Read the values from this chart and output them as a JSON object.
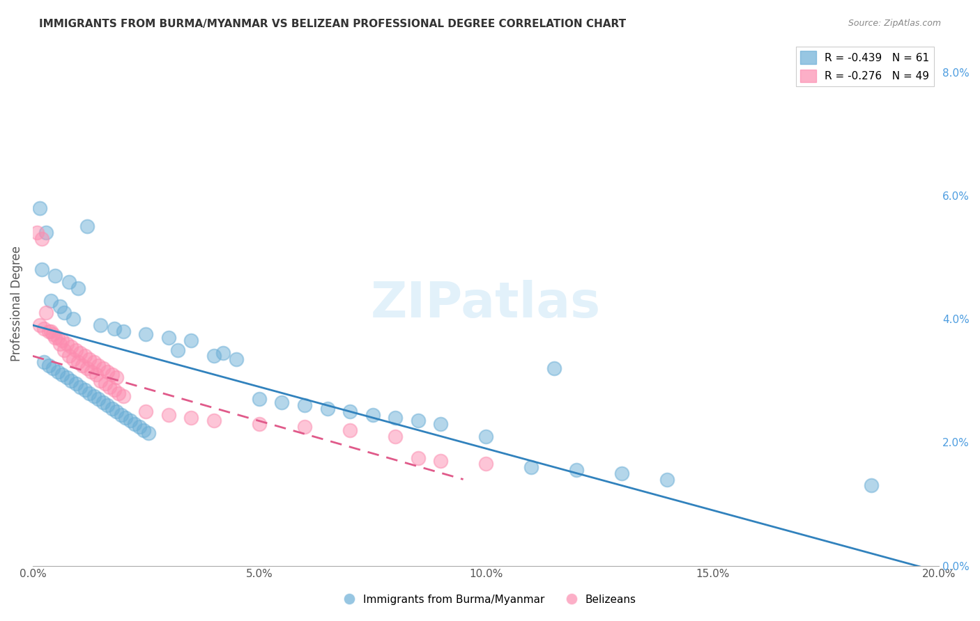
{
  "title": "IMMIGRANTS FROM BURMA/MYANMAR VS BELIZEAN PROFESSIONAL DEGREE CORRELATION CHART",
  "source": "Source: ZipAtlas.com",
  "ylabel": "Professional Degree",
  "xlabel": "",
  "right_ytick_labels": [
    "0.0%",
    "2.0%",
    "4.0%",
    "6.0%",
    "8.0%"
  ],
  "right_ytick_values": [
    0.0,
    2.0,
    4.0,
    6.0,
    8.0
  ],
  "bottom_xtick_labels": [
    "0.0%",
    "5.0%",
    "10.0%",
    "15.0%",
    "20.0%"
  ],
  "bottom_xtick_values": [
    0.0,
    5.0,
    10.0,
    15.0,
    20.0
  ],
  "xlim": [
    0.0,
    20.0
  ],
  "ylim": [
    0.0,
    8.5
  ],
  "legend_blue_label": "Immigrants from Burma/Myanmar",
  "legend_pink_label": "Belizeans",
  "legend_blue_R": "R = -0.439",
  "legend_blue_N": "N = 61",
  "legend_pink_R": "R = -0.276",
  "legend_pink_N": "N = 49",
  "blue_color": "#6baed6",
  "pink_color": "#fc8db0",
  "blue_line_color": "#3182bd",
  "pink_line_color": "#e05a8a",
  "watermark": "ZIPatlas",
  "background_color": "#ffffff",
  "grid_color": "#cccccc",
  "title_color": "#333333",
  "right_axis_color": "#6baed6",
  "blue_scatter_x": [
    1.2,
    0.3,
    0.2,
    0.5,
    0.8,
    1.0,
    0.4,
    0.6,
    0.7,
    0.9,
    1.5,
    1.8,
    2.0,
    2.5,
    3.0,
    3.5,
    4.0,
    4.5,
    5.0,
    5.5,
    6.0,
    6.5,
    7.0,
    7.5,
    8.0,
    8.5,
    9.0,
    10.0,
    11.0,
    12.0,
    13.0,
    14.0,
    18.5,
    0.15,
    0.25,
    0.35,
    0.45,
    0.55,
    0.65,
    0.75,
    0.85,
    0.95,
    1.05,
    1.15,
    1.25,
    1.35,
    1.45,
    1.55,
    1.65,
    1.75,
    1.85,
    1.95,
    2.05,
    2.15,
    2.25,
    2.35,
    2.45,
    2.55,
    3.2,
    4.2,
    11.5
  ],
  "blue_scatter_y": [
    5.5,
    5.4,
    4.8,
    4.7,
    4.6,
    4.5,
    4.3,
    4.2,
    4.1,
    4.0,
    3.9,
    3.85,
    3.8,
    3.75,
    3.7,
    3.65,
    3.4,
    3.35,
    2.7,
    2.65,
    2.6,
    2.55,
    2.5,
    2.45,
    2.4,
    2.35,
    2.3,
    2.1,
    1.6,
    1.55,
    1.5,
    1.4,
    1.3,
    5.8,
    3.3,
    3.25,
    3.2,
    3.15,
    3.1,
    3.05,
    3.0,
    2.95,
    2.9,
    2.85,
    2.8,
    2.75,
    2.7,
    2.65,
    2.6,
    2.55,
    2.5,
    2.45,
    2.4,
    2.35,
    2.3,
    2.25,
    2.2,
    2.15,
    3.5,
    3.45,
    3.2
  ],
  "pink_scatter_x": [
    0.1,
    0.2,
    0.3,
    0.4,
    0.5,
    0.6,
    0.7,
    0.8,
    0.9,
    1.0,
    1.1,
    1.2,
    1.3,
    1.4,
    1.5,
    1.6,
    1.7,
    1.8,
    1.9,
    2.0,
    2.5,
    3.0,
    3.5,
    4.0,
    5.0,
    6.0,
    7.0,
    8.0,
    9.0,
    10.0,
    0.15,
    0.25,
    0.35,
    0.45,
    0.55,
    0.65,
    0.75,
    0.85,
    0.95,
    1.05,
    1.15,
    1.25,
    1.35,
    1.45,
    1.55,
    1.65,
    1.75,
    1.85,
    8.5
  ],
  "pink_scatter_y": [
    5.4,
    5.3,
    4.1,
    3.8,
    3.7,
    3.6,
    3.5,
    3.4,
    3.35,
    3.3,
    3.25,
    3.2,
    3.15,
    3.1,
    3.0,
    2.95,
    2.9,
    2.85,
    2.8,
    2.75,
    2.5,
    2.45,
    2.4,
    2.35,
    2.3,
    2.25,
    2.2,
    2.1,
    1.7,
    1.65,
    3.9,
    3.85,
    3.8,
    3.75,
    3.7,
    3.65,
    3.6,
    3.55,
    3.5,
    3.45,
    3.4,
    3.35,
    3.3,
    3.25,
    3.2,
    3.15,
    3.1,
    3.05,
    1.75
  ],
  "blue_line_x": [
    0.0,
    20.0
  ],
  "blue_line_y_start": 3.9,
  "blue_line_y_end": -0.1,
  "pink_line_x": [
    0.0,
    9.5
  ],
  "pink_line_y_start": 3.4,
  "pink_line_y_end": 1.4
}
